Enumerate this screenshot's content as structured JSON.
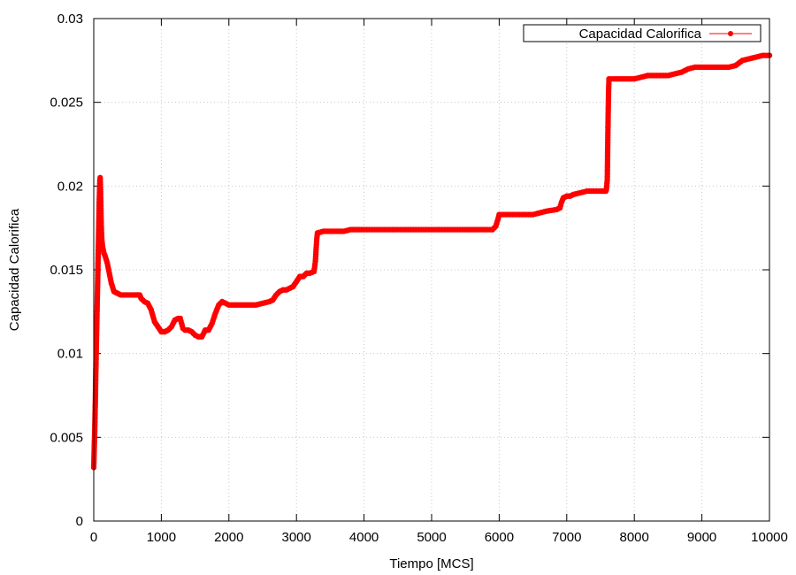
{
  "chart_data": {
    "type": "line",
    "title": "",
    "xlabel": "Tiempo [MCS]",
    "ylabel": "Capacidad Calorifica",
    "xlim": [
      0,
      10000
    ],
    "ylim": [
      0,
      0.03
    ],
    "x_ticks": [
      "0",
      "1000",
      "2000",
      "3000",
      "4000",
      "5000",
      "6000",
      "7000",
      "8000",
      "9000",
      "10000"
    ],
    "y_ticks": [
      "0",
      "0.005",
      "0.01",
      "0.015",
      "0.02",
      "0.025",
      "0.03"
    ],
    "grid": true,
    "legend_position": "top-right",
    "series": [
      {
        "name": "Capacidad Calorifica",
        "color": "#ff0000",
        "marker": "circle",
        "points": [
          [
            0,
            0.0032
          ],
          [
            5,
            0.004
          ],
          [
            10,
            0.0048
          ],
          [
            15,
            0.0055
          ],
          [
            20,
            0.0065
          ],
          [
            25,
            0.0075
          ],
          [
            30,
            0.0088
          ],
          [
            35,
            0.0098
          ],
          [
            40,
            0.0108
          ],
          [
            45,
            0.0118
          ],
          [
            50,
            0.0128
          ],
          [
            55,
            0.0138
          ],
          [
            60,
            0.0148
          ],
          [
            65,
            0.0158
          ],
          [
            70,
            0.0168
          ],
          [
            75,
            0.0178
          ],
          [
            80,
            0.0188
          ],
          [
            85,
            0.0196
          ],
          [
            90,
            0.0203
          ],
          [
            95,
            0.0205
          ],
          [
            100,
            0.0198
          ],
          [
            105,
            0.0188
          ],
          [
            110,
            0.0178
          ],
          [
            115,
            0.0172
          ],
          [
            120,
            0.0168
          ],
          [
            130,
            0.0164
          ],
          [
            150,
            0.016
          ],
          [
            170,
            0.0158
          ],
          [
            200,
            0.0154
          ],
          [
            230,
            0.0148
          ],
          [
            260,
            0.0142
          ],
          [
            300,
            0.0137
          ],
          [
            350,
            0.0136
          ],
          [
            400,
            0.0135
          ],
          [
            500,
            0.0135
          ],
          [
            600,
            0.0135
          ],
          [
            680,
            0.0135
          ],
          [
            700,
            0.0133
          ],
          [
            750,
            0.0131
          ],
          [
            800,
            0.013
          ],
          [
            850,
            0.0126
          ],
          [
            900,
            0.0119
          ],
          [
            950,
            0.0116
          ],
          [
            1000,
            0.0113
          ],
          [
            1050,
            0.0113
          ],
          [
            1100,
            0.0114
          ],
          [
            1150,
            0.0116
          ],
          [
            1200,
            0.012
          ],
          [
            1250,
            0.0121
          ],
          [
            1280,
            0.0121
          ],
          [
            1320,
            0.0115
          ],
          [
            1350,
            0.0114
          ],
          [
            1400,
            0.0114
          ],
          [
            1450,
            0.0113
          ],
          [
            1500,
            0.0111
          ],
          [
            1550,
            0.011
          ],
          [
            1600,
            0.011
          ],
          [
            1650,
            0.0114
          ],
          [
            1700,
            0.0114
          ],
          [
            1750,
            0.0118
          ],
          [
            1800,
            0.0124
          ],
          [
            1850,
            0.0129
          ],
          [
            1900,
            0.0131
          ],
          [
            2000,
            0.0129
          ],
          [
            2100,
            0.0129
          ],
          [
            2200,
            0.0129
          ],
          [
            2300,
            0.0129
          ],
          [
            2400,
            0.0129
          ],
          [
            2500,
            0.013
          ],
          [
            2600,
            0.0131
          ],
          [
            2650,
            0.0132
          ],
          [
            2700,
            0.0135
          ],
          [
            2750,
            0.0137
          ],
          [
            2800,
            0.0138
          ],
          [
            2850,
            0.0138
          ],
          [
            2900,
            0.0139
          ],
          [
            2950,
            0.014
          ],
          [
            3000,
            0.0143
          ],
          [
            3050,
            0.0146
          ],
          [
            3100,
            0.0146
          ],
          [
            3150,
            0.0148
          ],
          [
            3200,
            0.0148
          ],
          [
            3260,
            0.0149
          ],
          [
            3280,
            0.0155
          ],
          [
            3290,
            0.0162
          ],
          [
            3300,
            0.0168
          ],
          [
            3310,
            0.0172
          ],
          [
            3400,
            0.0173
          ],
          [
            3500,
            0.0173
          ],
          [
            3600,
            0.0173
          ],
          [
            3700,
            0.0173
          ],
          [
            3800,
            0.0174
          ],
          [
            4000,
            0.0174
          ],
          [
            4500,
            0.0174
          ],
          [
            5000,
            0.0174
          ],
          [
            5500,
            0.0174
          ],
          [
            5900,
            0.0174
          ],
          [
            5950,
            0.0176
          ],
          [
            5980,
            0.018
          ],
          [
            6000,
            0.0183
          ],
          [
            6200,
            0.0183
          ],
          [
            6400,
            0.0183
          ],
          [
            6500,
            0.0183
          ],
          [
            6600,
            0.0184
          ],
          [
            6700,
            0.0185
          ],
          [
            6850,
            0.0186
          ],
          [
            6900,
            0.0187
          ],
          [
            6920,
            0.019
          ],
          [
            6950,
            0.0193
          ],
          [
            7000,
            0.0194
          ],
          [
            7050,
            0.0194
          ],
          [
            7100,
            0.0195
          ],
          [
            7200,
            0.0196
          ],
          [
            7300,
            0.0197
          ],
          [
            7400,
            0.0197
          ],
          [
            7500,
            0.0197
          ],
          [
            7580,
            0.0197
          ],
          [
            7590,
            0.0199
          ],
          [
            7600,
            0.0204
          ],
          [
            7605,
            0.022
          ],
          [
            7610,
            0.0235
          ],
          [
            7615,
            0.0248
          ],
          [
            7620,
            0.0258
          ],
          [
            7625,
            0.0264
          ],
          [
            7700,
            0.0264
          ],
          [
            7800,
            0.0264
          ],
          [
            8000,
            0.0264
          ],
          [
            8100,
            0.0265
          ],
          [
            8200,
            0.0266
          ],
          [
            8400,
            0.0266
          ],
          [
            8500,
            0.0266
          ],
          [
            8600,
            0.0267
          ],
          [
            8700,
            0.0268
          ],
          [
            8800,
            0.027
          ],
          [
            8900,
            0.0271
          ],
          [
            9000,
            0.0271
          ],
          [
            9200,
            0.0271
          ],
          [
            9400,
            0.0271
          ],
          [
            9500,
            0.0272
          ],
          [
            9600,
            0.0275
          ],
          [
            9700,
            0.0276
          ],
          [
            9800,
            0.0277
          ],
          [
            9900,
            0.0278
          ],
          [
            10000,
            0.0278
          ]
        ]
      }
    ]
  }
}
